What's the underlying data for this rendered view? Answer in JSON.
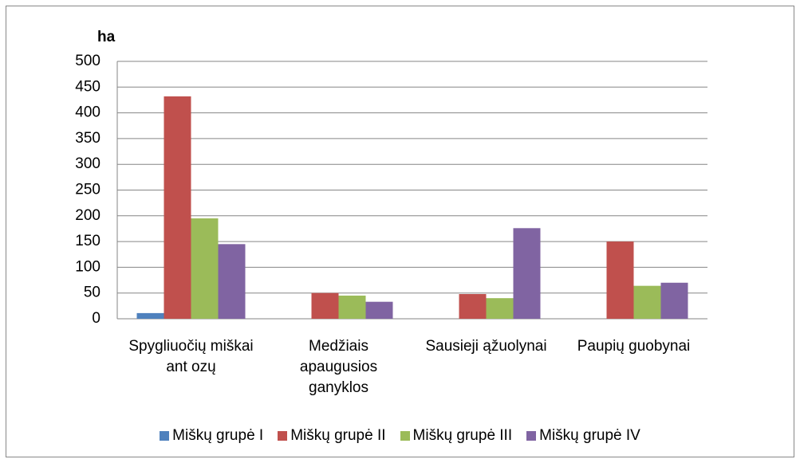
{
  "chart_data": {
    "type": "bar",
    "y_label": "ha",
    "categories": [
      "Spygliuočių miškai ant ozų",
      "Medžiais apaugusios ganyklos",
      "Sausieji ąžuolynai",
      "Paupių guobynai"
    ],
    "series": [
      {
        "name": "Miškų grupė I",
        "color": "#4f81bd",
        "values": [
          11,
          0,
          0,
          0
        ]
      },
      {
        "name": "Miškų grupė II",
        "color": "#c0504d",
        "values": [
          432,
          50,
          48,
          150
        ]
      },
      {
        "name": "Miškų grupė III",
        "color": "#9bbb59",
        "values": [
          195,
          45,
          40,
          64
        ]
      },
      {
        "name": "Miškų grupė IV",
        "color": "#8064a2",
        "values": [
          145,
          33,
          176,
          70
        ]
      }
    ],
    "ylim": [
      0,
      500
    ],
    "yticks": [
      0,
      50,
      100,
      150,
      200,
      250,
      300,
      350,
      400,
      450,
      500
    ],
    "grid": true,
    "legend": "bottom"
  }
}
